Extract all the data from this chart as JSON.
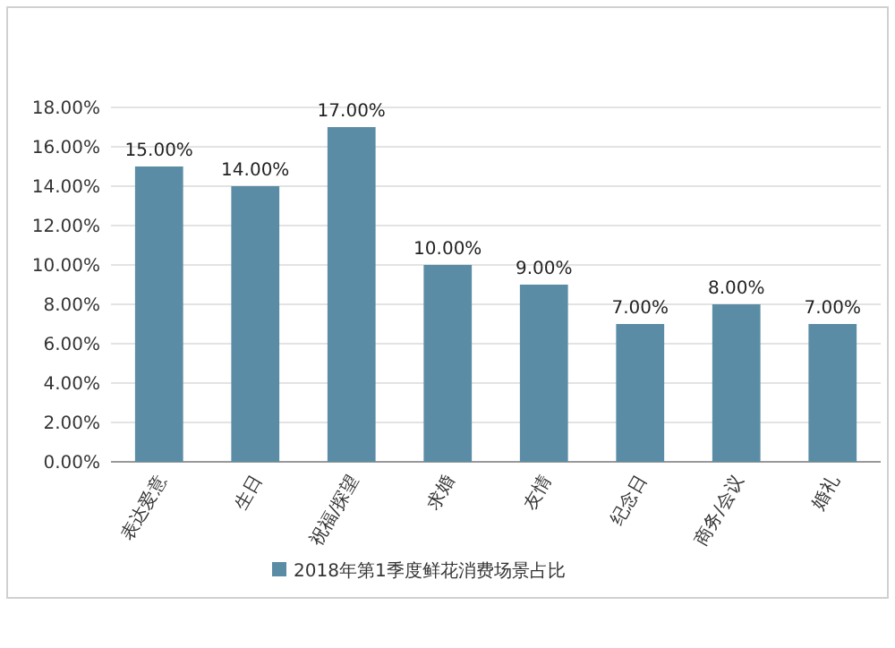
{
  "chart_data": {
    "type": "bar",
    "categories": [
      "表达爱意",
      "生日",
      "祝福/探望",
      "求婚",
      "友情",
      "纪念日",
      "商务/会议",
      "婚礼"
    ],
    "series": [
      {
        "name": "2018年第1季度鲜花消费场景占比",
        "color": "#5b8ca5",
        "values": [
          15,
          14,
          17,
          10,
          9,
          7,
          8,
          7
        ],
        "value_labels": [
          "15.00%",
          "14.00%",
          "17.00%",
          "10.00%",
          "9.00%",
          "7.00%",
          "8.00%",
          "7.00%"
        ]
      }
    ],
    "ylim": [
      0,
      18
    ],
    "yticks": [
      {
        "value": 0,
        "label": "0.00%"
      },
      {
        "value": 2,
        "label": "2.00%"
      },
      {
        "value": 4,
        "label": "4.00%"
      },
      {
        "value": 6,
        "label": "6.00%"
      },
      {
        "value": 8,
        "label": "8.00%"
      },
      {
        "value": 10,
        "label": "10.00%"
      },
      {
        "value": 12,
        "label": "12.00%"
      },
      {
        "value": 14,
        "label": "14.00%"
      },
      {
        "value": 16,
        "label": "16.00%"
      },
      {
        "value": 18,
        "label": "18.00%"
      }
    ],
    "grid": "y",
    "legend": "bottom"
  }
}
